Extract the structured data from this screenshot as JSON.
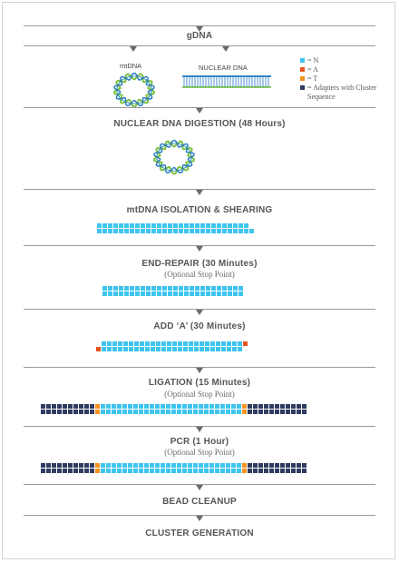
{
  "colors": {
    "N": "#3ec4ee",
    "A": "#e8541e",
    "T": "#f5921e",
    "adapter": "#2f3b61",
    "helix_green": "#7cc242",
    "helix_blue": "#1f78c0"
  },
  "labels": {
    "gdna": "gDNA",
    "mtdna": "mtDNA",
    "nuclear_dna": "NUCLEAR DNA"
  },
  "legend": [
    {
      "key": "N",
      "text": "= N"
    },
    {
      "key": "A",
      "text": "= A"
    },
    {
      "key": "T",
      "text": "= T"
    },
    {
      "key": "adapter",
      "text": "= Adapters with Cluster Sequence"
    }
  ],
  "steps": {
    "digestion": {
      "title": "NUCLEAR DNA DIGESTION (48 Hours)"
    },
    "isolation": {
      "title": "mtDNA ISOLATION & SHEARING"
    },
    "end_repair": {
      "title": "END-REPAIR (30 Minutes)",
      "subtitle": "(Optional Stop Point)"
    },
    "add_a": {
      "title": "ADD ‘A’ (30 Minutes)"
    },
    "ligation": {
      "title": "LIGATION (15 Minutes)",
      "subtitle": "(Optional Stop Point)"
    },
    "pcr": {
      "title": "PCR (1 Hour)",
      "subtitle": "(Optional Stop Point)"
    },
    "cleanup": {
      "title": "BEAD CLEANUP"
    },
    "cluster": {
      "title": "CLUSTER GENERATION"
    }
  }
}
